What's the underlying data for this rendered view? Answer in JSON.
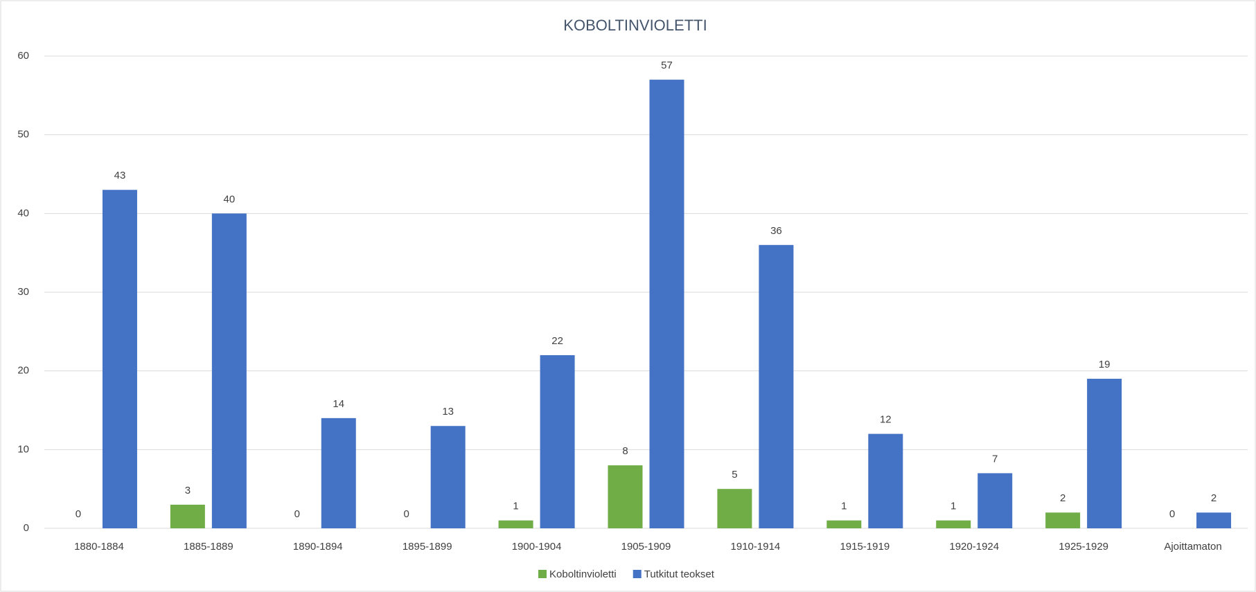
{
  "chart_data": {
    "type": "bar",
    "title": "KOBOLTINVIOLETTI",
    "categories": [
      "1880-1884",
      "1885-1889",
      "1890-1894",
      "1895-1899",
      "1900-1904",
      "1905-1909",
      "1910-1914",
      "1915-1919",
      "1920-1924",
      "1925-1929",
      "Ajoittamaton"
    ],
    "series": [
      {
        "name": "Koboltinvioletti",
        "color": "#70ad47",
        "values": [
          0,
          3,
          0,
          0,
          1,
          8,
          5,
          1,
          1,
          2,
          0
        ]
      },
      {
        "name": "Tutkitut teokset",
        "color": "#4472c4",
        "values": [
          43,
          40,
          14,
          13,
          22,
          57,
          36,
          12,
          7,
          19,
          2
        ]
      }
    ],
    "ylim": [
      0,
      60
    ],
    "yticks": [
      0,
      10,
      20,
      30,
      40,
      50,
      60
    ],
    "grid": true,
    "legend": "bottom"
  }
}
